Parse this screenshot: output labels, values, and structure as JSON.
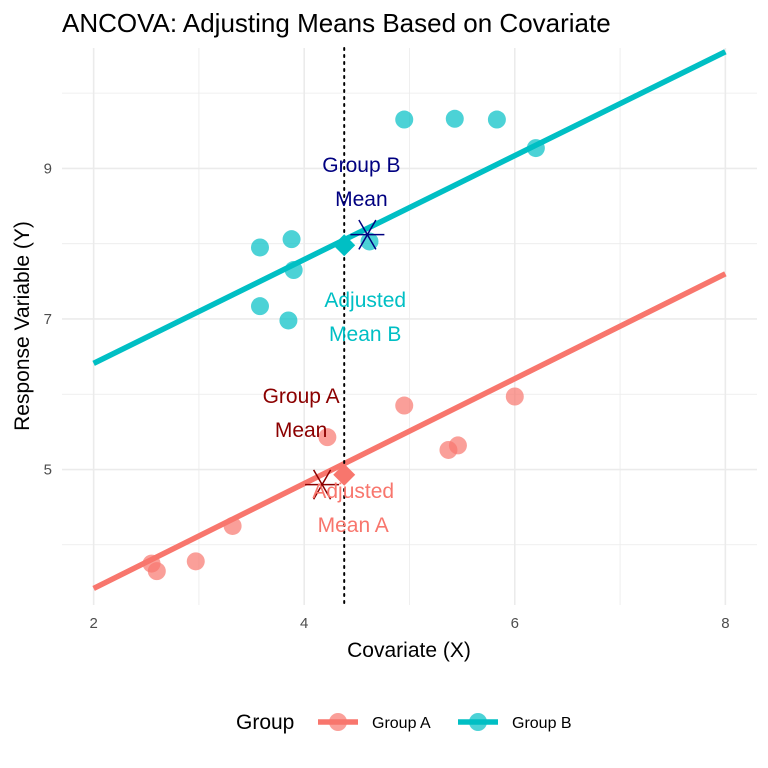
{
  "chart_data": {
    "type": "scatter",
    "title": "ANCOVA: Adjusting Means Based on Covariate",
    "xlabel": "Covariate (X)",
    "ylabel": "Response Variable (Y)",
    "xlim": [
      2,
      8
    ],
    "ylim": [
      3.2,
      10.6
    ],
    "x_ticks": [
      2,
      4,
      6,
      8
    ],
    "y_ticks": [
      5,
      7,
      9
    ],
    "grid": true,
    "legend": {
      "title": "Group",
      "position": "bottom"
    },
    "covariate_mean_x": 4.38,
    "series": [
      {
        "name": "Group A",
        "color": "#F8766D",
        "points": [
          [
            2.55,
            3.75
          ],
          [
            2.6,
            3.65
          ],
          [
            2.97,
            3.78
          ],
          [
            3.32,
            4.25
          ],
          [
            4.22,
            5.43
          ],
          [
            4.95,
            5.85
          ],
          [
            5.37,
            5.26
          ],
          [
            5.46,
            5.32
          ],
          [
            6.0,
            5.97
          ]
        ],
        "regression_line": {
          "x": [
            2,
            8
          ],
          "y": [
            3.42,
            7.6
          ]
        },
        "group_mean": {
          "x": 4.17,
          "y": 4.8,
          "label": "Group A\nMean",
          "label_color": "#8B0000"
        },
        "adjusted_mean": {
          "x": 4.38,
          "y": 4.93,
          "label": "Adjusted\nMean A",
          "label_color": "#F8766D"
        }
      },
      {
        "name": "Group B",
        "color": "#00BFC4",
        "points": [
          [
            3.58,
            7.95
          ],
          [
            3.58,
            7.17
          ],
          [
            3.85,
            6.98
          ],
          [
            3.88,
            8.06
          ],
          [
            3.9,
            7.65
          ],
          [
            4.62,
            8.03
          ],
          [
            4.95,
            9.65
          ],
          [
            5.43,
            9.66
          ],
          [
            5.83,
            9.65
          ],
          [
            6.2,
            9.27
          ]
        ],
        "regression_line": {
          "x": [
            2,
            8
          ],
          "y": [
            6.41,
            10.55
          ]
        },
        "group_mean": {
          "x": 4.6,
          "y": 8.12,
          "label": "Group B\nMean",
          "label_color": "#000080"
        },
        "adjusted_mean": {
          "x": 4.38,
          "y": 7.98,
          "label": "Adjusted\nMean B",
          "label_color": "#00BFC4"
        }
      }
    ]
  }
}
